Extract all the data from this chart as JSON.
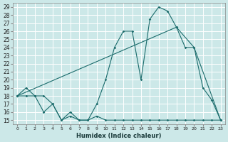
{
  "xlabel": "Humidex (Indice chaleur)",
  "bg_color": "#cce8e8",
  "grid_color": "#ffffff",
  "line_color": "#1a6b6b",
  "xlim": [
    -0.5,
    23.5
  ],
  "ylim": [
    14.5,
    29.5
  ],
  "xticks": [
    0,
    1,
    2,
    3,
    4,
    5,
    6,
    7,
    8,
    9,
    10,
    11,
    12,
    13,
    14,
    15,
    16,
    17,
    18,
    19,
    20,
    21,
    22,
    23
  ],
  "yticks": [
    15,
    16,
    17,
    18,
    19,
    20,
    21,
    22,
    23,
    24,
    25,
    26,
    27,
    28,
    29
  ],
  "line1_x": [
    0,
    1,
    2,
    3,
    4,
    5,
    6,
    7,
    8,
    9,
    10,
    11,
    12,
    13,
    14,
    15,
    16,
    17,
    18,
    19,
    20,
    21,
    22,
    23
  ],
  "line1_y": [
    18,
    19,
    18,
    18,
    17,
    15,
    16,
    15,
    15,
    17,
    20,
    24,
    26,
    26,
    20,
    27.5,
    29,
    28.5,
    26.5,
    24,
    24,
    19,
    17.5,
    15
  ],
  "line2_x": [
    0,
    1,
    2,
    3,
    4,
    5,
    6,
    7,
    8,
    9,
    10,
    11,
    12,
    13,
    14,
    15,
    16,
    17,
    18,
    19,
    20,
    21,
    22,
    23
  ],
  "line2_y": [
    18,
    18,
    18,
    16,
    17,
    15,
    15.5,
    15,
    15,
    15.5,
    15,
    15,
    15,
    15,
    15,
    15,
    15,
    15,
    15,
    15,
    15,
    15,
    15,
    15
  ],
  "line3_x": [
    0,
    18,
    20,
    23
  ],
  "line3_y": [
    18,
    26.5,
    24,
    15
  ]
}
